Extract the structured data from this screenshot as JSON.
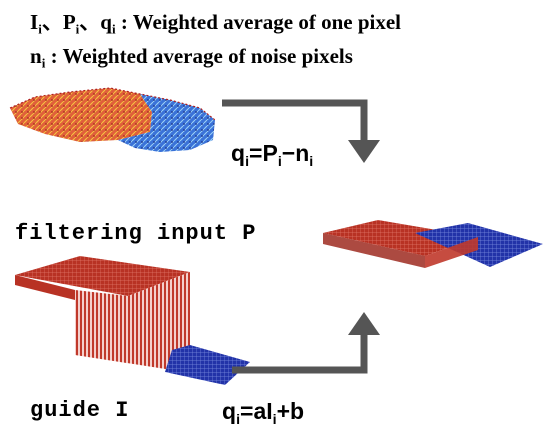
{
  "legend": {
    "line1": {
      "symbols": [
        {
          "base": "I",
          "sub": "i",
          "sep": "、"
        },
        {
          "base": "P",
          "sub": "i",
          "sep": "、"
        },
        {
          "base": "q",
          "sub": "i",
          "sep": ""
        }
      ],
      "colon": ":",
      "text": "Weighted average of one pixel"
    },
    "line2": {
      "base": "n",
      "sub": "i",
      "colon": ":",
      "text": "Weighted average of noise pixels"
    }
  },
  "labels": {
    "filtering_input": "filtering input P",
    "guide": "guide I"
  },
  "equations": {
    "top": {
      "lhs_base": "q",
      "lhs_sub": "i",
      "eq": "=",
      "t1_base": "P",
      "t1_sub": "i",
      "op": "−",
      "t2_base": "n",
      "t2_sub": "i"
    },
    "bottom": {
      "lhs_base": "q",
      "lhs_sub": "i",
      "eq": "=",
      "coef": "a",
      "t1_base": "I",
      "t1_sub": "i",
      "tail": "+b"
    }
  },
  "colors": {
    "red_surface": "#c0392b",
    "blue_surface": "#2233aa",
    "arrow": "#555555"
  }
}
